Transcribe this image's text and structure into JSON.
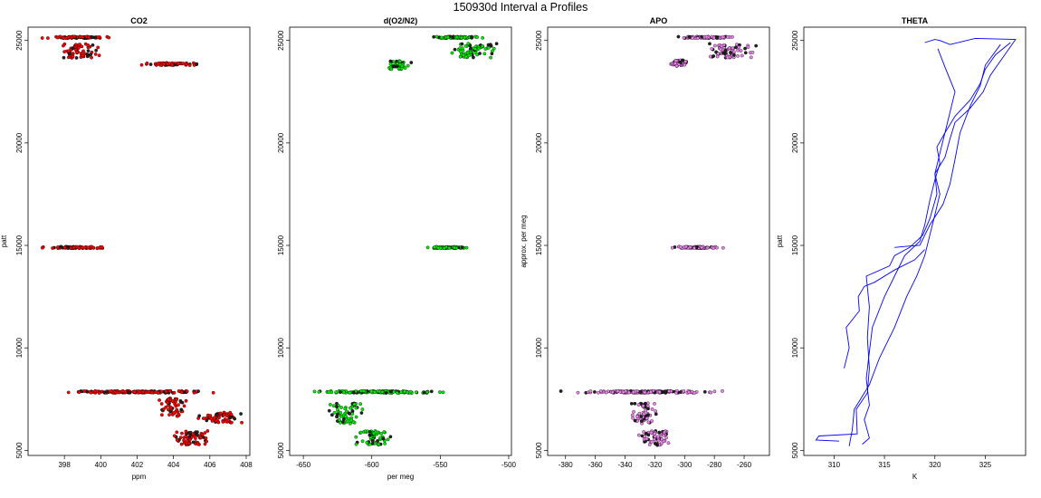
{
  "title": "150930d   Interval a Profiles",
  "chart_data": [
    {
      "type": "scatter",
      "title": "CO2",
      "xlabel": "ppm",
      "ylabel": "patt",
      "xlim": [
        396,
        408.2
      ],
      "ylim": [
        4750,
        25650
      ],
      "xticks": [
        398,
        400,
        402,
        404,
        406,
        408
      ],
      "yticks": [
        5000,
        10000,
        15000,
        20000,
        25000
      ],
      "color": "#ff0000",
      "groups": [
        {
          "y": 25150,
          "xmin": 396.2,
          "xmax": 401.2,
          "ydev": 40
        },
        {
          "y": 24500,
          "xmin": 397.3,
          "xmax": 400.2,
          "ydev": 350
        },
        {
          "y": 23850,
          "xmin": 402.0,
          "xmax": 405.7,
          "ydev": 60
        },
        {
          "y": 14900,
          "xmin": 396.5,
          "xmax": 400.8,
          "ydev": 40
        },
        {
          "y": 7850,
          "xmin": 396.8,
          "xmax": 407.0,
          "ydev": 50
        },
        {
          "y": 7100,
          "xmin": 402.8,
          "xmax": 405.0,
          "ydev": 450
        },
        {
          "y": 6600,
          "xmin": 405.0,
          "xmax": 408.0,
          "ydev": 250
        },
        {
          "y": 5600,
          "xmin": 403.6,
          "xmax": 406.5,
          "ydev": 350
        }
      ]
    },
    {
      "type": "scatter",
      "title": "d(O2/N2)",
      "xlabel": "per meg",
      "ylabel": "",
      "xlim": [
        -660,
        -498
      ],
      "ylim": [
        4750,
        25650
      ],
      "xticks": [
        -650,
        -600,
        -550,
        -500
      ],
      "yticks": [
        5000,
        10000,
        15000,
        20000,
        25000
      ],
      "color": "#00ee00",
      "groups": [
        {
          "y": 25150,
          "xmin": -562,
          "xmax": -515,
          "ydev": 40
        },
        {
          "y": 24500,
          "xmin": -545,
          "xmax": -505,
          "ydev": 350
        },
        {
          "y": 23800,
          "xmin": -590,
          "xmax": -570,
          "ydev": 200
        },
        {
          "y": 14900,
          "xmin": -565,
          "xmax": -525,
          "ydev": 40
        },
        {
          "y": 7850,
          "xmin": -655,
          "xmax": -538,
          "ydev": 50
        },
        {
          "y": 6800,
          "xmin": -635,
          "xmax": -600,
          "ydev": 500
        },
        {
          "y": 5600,
          "xmin": -615,
          "xmax": -583,
          "ydev": 350
        }
      ]
    },
    {
      "type": "scatter",
      "title": "APO",
      "xlabel": "",
      "ylabel": "approx. per meg",
      "xlim": [
        -392,
        -243
      ],
      "ylim": [
        4750,
        25650
      ],
      "xticks": [
        -380,
        -360,
        -340,
        -320,
        -300,
        -280,
        -260
      ],
      "yticks": [
        5000,
        10000,
        15000,
        20000,
        25000
      ],
      "color": "#ee82ee",
      "groups": [
        {
          "y": 25150,
          "xmin": -310,
          "xmax": -262,
          "ydev": 40
        },
        {
          "y": 24500,
          "xmin": -290,
          "xmax": -250,
          "ydev": 350
        },
        {
          "y": 23900,
          "xmin": -312,
          "xmax": -295,
          "ydev": 150
        },
        {
          "y": 14900,
          "xmin": -312,
          "xmax": -270,
          "ydev": 40
        },
        {
          "y": 7850,
          "xmin": -388,
          "xmax": -268,
          "ydev": 50
        },
        {
          "y": 6800,
          "xmin": -340,
          "xmax": -315,
          "ydev": 500
        },
        {
          "y": 5600,
          "xmin": -333,
          "xmax": -305,
          "ydev": 350
        }
      ]
    },
    {
      "type": "line",
      "title": "THETA",
      "xlabel": "K",
      "ylabel": "patt",
      "xlim": [
        307,
        329
      ],
      "ylim": [
        4750,
        25650
      ],
      "xticks": [
        310,
        315,
        320,
        325
      ],
      "yticks": [
        5000,
        10000,
        15000,
        20000,
        25000
      ],
      "color": "#0000ff",
      "series": [
        {
          "x": [
            310.5,
            308.2,
            308.5,
            312.3,
            312.2,
            313.3,
            313.5,
            313.3,
            313.5,
            313.2,
            315.5,
            316,
            317.5,
            318.8,
            319.5,
            320.2,
            320.0,
            321.0,
            321.5,
            322.0,
            323.5,
            324.8,
            325.5,
            326.5,
            328.0,
            324.0,
            321.5,
            320.5,
            320.0,
            319.0
          ],
          "y": [
            5450,
            5500,
            5700,
            5800,
            7000,
            7800,
            9000,
            10500,
            12000,
            13500,
            14000,
            14500,
            14900,
            15500,
            16300,
            17500,
            18500,
            19300,
            20200,
            21000,
            21700,
            22500,
            23300,
            24000,
            25050,
            25100,
            24800,
            25000,
            25050,
            24900
          ]
        },
        {
          "x": [
            312.8,
            313.5,
            313.0,
            313.5,
            313.2,
            313.5,
            313.8,
            315.0,
            316.0,
            317.0,
            318.5,
            319.0,
            319.5,
            320.0,
            320.5,
            320.2,
            321.0,
            322.0,
            323.5,
            324.5,
            325.0,
            326.0,
            327.5
          ],
          "y": [
            5300,
            5600,
            6500,
            7200,
            8500,
            9800,
            11000,
            12500,
            13500,
            14500,
            15200,
            16000,
            17200,
            18200,
            19000,
            19800,
            20500,
            21300,
            22100,
            22900,
            23600,
            24300,
            24900
          ]
        },
        {
          "x": [
            311.5,
            311.8,
            312.0,
            313.5,
            314.5,
            316.0,
            317.2,
            318.2,
            319.0,
            319.5,
            320.0,
            320.5,
            320.0,
            320.5,
            321.0,
            321.5,
            322.0,
            321.0,
            320.3
          ],
          "y": [
            5200,
            6000,
            7000,
            8200,
            9500,
            11000,
            12500,
            13500,
            14500,
            15500,
            16500,
            17500,
            18500,
            19500,
            20500,
            21500,
            22500,
            23700,
            24600
          ]
        },
        {
          "x": [
            311.0,
            311.5,
            311.2,
            312.5,
            312.4,
            313.0,
            314.0,
            316.0,
            318.0,
            319.0
          ],
          "y": [
            9000,
            10000,
            11000,
            11800,
            12500,
            13000,
            13200,
            13800,
            14300,
            14800
          ]
        },
        {
          "x": [
            316.0,
            317.0,
            318.5,
            319.5,
            320.8,
            321.5,
            322.0,
            322.5,
            323.5,
            324.5,
            325.0,
            326.5
          ],
          "y": [
            14900,
            14950,
            15000,
            16000,
            17000,
            18000,
            19200,
            20500,
            21800,
            22800,
            23800,
            24800
          ]
        }
      ]
    }
  ]
}
